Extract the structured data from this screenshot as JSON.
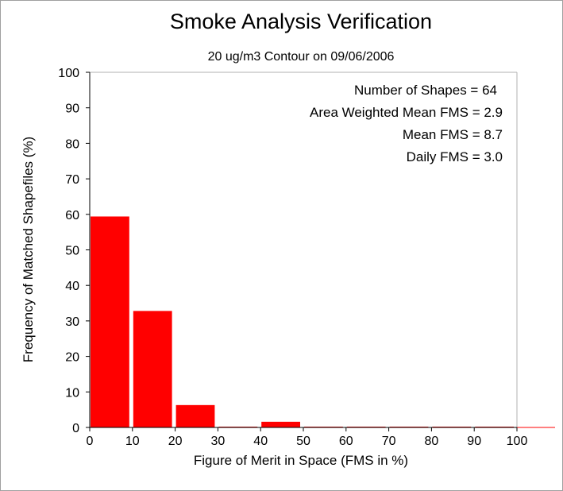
{
  "chart_data": {
    "type": "bar",
    "title": "Smoke Analysis Verification",
    "subtitle": "20 ug/m3 Contour on 09/06/2006",
    "xlabel": "Figure of Merit in Space (FMS in %)",
    "ylabel": "Frequency of Matched Shapefiles (%)",
    "xlim": [
      0,
      100
    ],
    "ylim": [
      0,
      100
    ],
    "xticks": [
      "0",
      "10",
      "20",
      "30",
      "40",
      "50",
      "60",
      "70",
      "80",
      "90",
      "100"
    ],
    "yticks": [
      "0",
      "10",
      "20",
      "30",
      "40",
      "50",
      "60",
      "70",
      "80",
      "90",
      "100"
    ],
    "bin_width": 10,
    "bins": [
      {
        "start": 0,
        "value": 59.4
      },
      {
        "start": 10,
        "value": 32.8
      },
      {
        "start": 20,
        "value": 6.3
      },
      {
        "start": 30,
        "value": 0
      },
      {
        "start": 40,
        "value": 1.6
      },
      {
        "start": 50,
        "value": 0
      },
      {
        "start": 60,
        "value": 0
      },
      {
        "start": 70,
        "value": 0
      },
      {
        "start": 80,
        "value": 0
      },
      {
        "start": 90,
        "value": 0
      }
    ],
    "bar_color": "#ff0000",
    "annotations": [
      "Number of Shapes = 64",
      "Area Weighted Mean FMS = 2.9",
      "Mean FMS = 8.7",
      "Daily FMS = 3.0"
    ]
  }
}
